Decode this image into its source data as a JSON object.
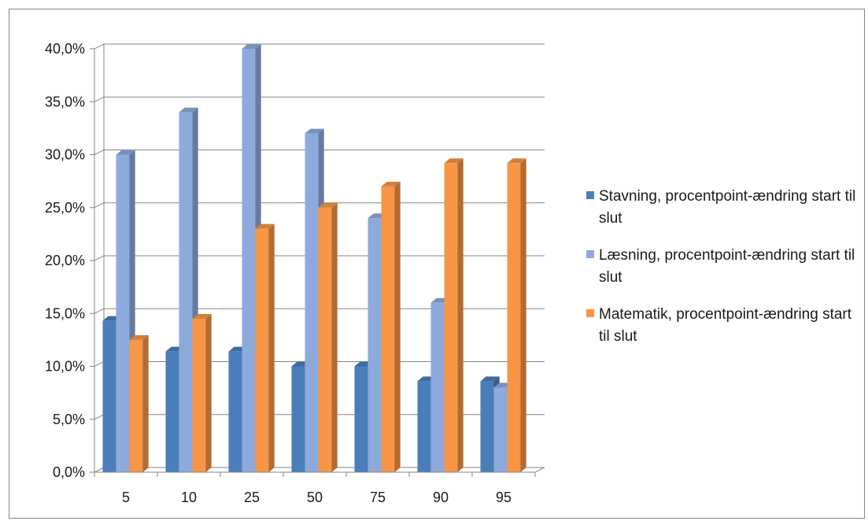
{
  "chart_data": {
    "type": "bar",
    "categories": [
      "5",
      "10",
      "25",
      "50",
      "75",
      "90",
      "95"
    ],
    "series": [
      {
        "name": "Stavning, procentpoint-ændring start til slut",
        "values": [
          14.3,
          11.4,
          11.4,
          10.0,
          10.0,
          8.6,
          8.6
        ],
        "color": "#4a7ebb"
      },
      {
        "name": "Læsning, procentpoint-ændring start til slut",
        "values": [
          30.0,
          34.0,
          40.0,
          32.0,
          24.0,
          16.0,
          8.0
        ],
        "color": "#8eaadc"
      },
      {
        "name": "Matematik, procentpoint-ændring start til slut",
        "values": [
          12.5,
          14.5,
          23.0,
          25.0,
          27.0,
          29.2,
          29.2
        ],
        "color": "#f79646"
      }
    ],
    "yticks": [
      "0,0%",
      "5,0%",
      "10,0%",
      "15,0%",
      "20,0%",
      "25,0%",
      "30,0%",
      "35,0%",
      "40,0%"
    ],
    "ylim": [
      0,
      40
    ],
    "grid": true,
    "legend_position": "right",
    "style": "3d-column"
  }
}
